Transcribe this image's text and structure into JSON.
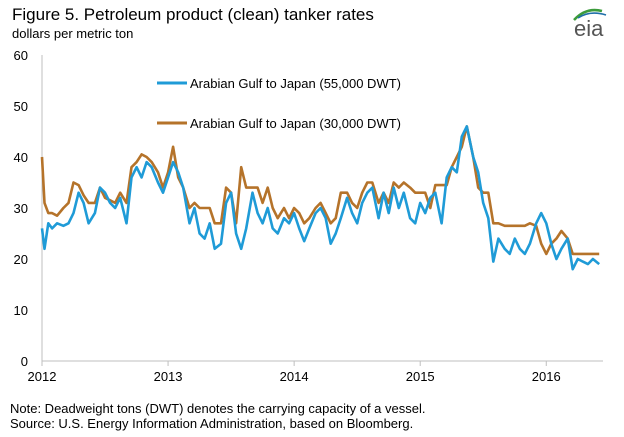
{
  "title": "Figure 5. Petroleum product (clean) tanker rates",
  "subtitle": "dollars per metric ton",
  "logo_text": "eia",
  "note": "Note: Deadweight tons (DWT) denotes the carrying capacity of a vessel.",
  "source": "Source: U.S. Energy Information Administration, based on Bloomberg.",
  "colors": {
    "blue": "#1f9bd7",
    "brown": "#b5732a",
    "axis": "#bfbfbf",
    "logo_green": "#3c9c3c",
    "logo_blue": "#1f6fa8"
  },
  "chart_data": {
    "type": "line",
    "title": "Figure 5. Petroleum product (clean) tanker rates",
    "ylabel": "dollars per metric ton",
    "ylim": [
      0,
      60
    ],
    "yticks": [
      0,
      10,
      20,
      30,
      40,
      50,
      60
    ],
    "xlim": [
      2012.0,
      2016.45
    ],
    "xticks": [
      2012,
      2013,
      2014,
      2015,
      2016
    ],
    "xtick_labels": [
      "2012",
      "2013",
      "2014",
      "2015",
      "2016"
    ],
    "grid": false,
    "legend": "inside, top-center",
    "series": [
      {
        "name": "Arabian Gulf to Japan (55,000 DWT)",
        "color": "#1f9bd7",
        "x": [
          2012.0,
          2012.02,
          2012.05,
          2012.08,
          2012.12,
          2012.17,
          2012.21,
          2012.25,
          2012.29,
          2012.33,
          2012.37,
          2012.42,
          2012.46,
          2012.5,
          2012.54,
          2012.58,
          2012.62,
          2012.67,
          2012.71,
          2012.75,
          2012.79,
          2012.83,
          2012.87,
          2012.92,
          2012.96,
          2013.0,
          2013.04,
          2013.08,
          2013.12,
          2013.17,
          2013.21,
          2013.25,
          2013.29,
          2013.33,
          2013.37,
          2013.42,
          2013.46,
          2013.5,
          2013.54,
          2013.58,
          2013.62,
          2013.67,
          2013.71,
          2013.75,
          2013.79,
          2013.83,
          2013.87,
          2013.92,
          2013.96,
          2014.0,
          2014.04,
          2014.08,
          2014.12,
          2014.17,
          2014.21,
          2014.25,
          2014.29,
          2014.33,
          2014.37,
          2014.42,
          2014.46,
          2014.5,
          2014.54,
          2014.58,
          2014.62,
          2014.67,
          2014.71,
          2014.75,
          2014.79,
          2014.83,
          2014.87,
          2014.92,
          2014.96,
          2015.0,
          2015.04,
          2015.08,
          2015.12,
          2015.17,
          2015.21,
          2015.25,
          2015.29,
          2015.33,
          2015.37,
          2015.42,
          2015.46,
          2015.5,
          2015.54,
          2015.58,
          2015.62,
          2015.67,
          2015.71,
          2015.75,
          2015.79,
          2015.83,
          2015.87,
          2015.92,
          2015.96,
          2016.0,
          2016.04,
          2016.08,
          2016.12,
          2016.17,
          2016.21,
          2016.25,
          2016.29,
          2016.33,
          2016.37,
          2016.42
        ],
        "values": [
          26,
          22,
          27,
          26,
          27,
          26.5,
          27,
          29,
          33,
          31,
          27,
          29,
          34,
          33,
          31,
          30,
          32,
          27,
          36,
          38,
          36,
          39,
          38,
          35,
          33,
          36,
          39,
          37,
          34,
          27,
          30,
          25,
          24,
          27,
          22,
          23,
          31,
          33,
          25,
          22,
          26,
          33,
          29,
          27,
          30,
          26,
          25,
          28,
          27,
          29,
          26,
          23.5,
          26,
          29,
          30,
          28,
          23,
          25,
          28,
          32,
          29,
          27,
          31,
          33,
          34,
          28,
          33,
          29,
          34,
          30,
          33,
          28,
          27,
          31,
          29,
          32,
          33,
          27,
          36,
          38,
          37,
          44,
          46,
          40,
          37,
          31,
          28,
          19.5,
          24,
          22,
          21,
          24,
          22,
          21,
          23,
          27,
          29,
          27,
          23,
          20,
          22,
          24,
          18,
          20,
          19.5,
          19,
          20,
          19
        ]
      },
      {
        "name": "Arabian Gulf to Japan (30,000 DWT)",
        "color": "#b5732a",
        "x": [
          2012.0,
          2012.02,
          2012.05,
          2012.08,
          2012.12,
          2012.17,
          2012.21,
          2012.25,
          2012.29,
          2012.33,
          2012.37,
          2012.42,
          2012.46,
          2012.5,
          2012.54,
          2012.58,
          2012.62,
          2012.67,
          2012.71,
          2012.75,
          2012.79,
          2012.83,
          2012.87,
          2012.92,
          2012.96,
          2013.0,
          2013.04,
          2013.08,
          2013.12,
          2013.17,
          2013.21,
          2013.25,
          2013.29,
          2013.33,
          2013.37,
          2013.42,
          2013.46,
          2013.5,
          2013.54,
          2013.58,
          2013.62,
          2013.67,
          2013.71,
          2013.75,
          2013.79,
          2013.83,
          2013.87,
          2013.92,
          2013.96,
          2014.0,
          2014.04,
          2014.08,
          2014.12,
          2014.17,
          2014.21,
          2014.25,
          2014.29,
          2014.33,
          2014.37,
          2014.42,
          2014.46,
          2014.5,
          2014.54,
          2014.58,
          2014.62,
          2014.67,
          2014.71,
          2014.75,
          2014.79,
          2014.83,
          2014.87,
          2014.92,
          2014.96,
          2015.0,
          2015.04,
          2015.08,
          2015.12,
          2015.17,
          2015.21,
          2015.25,
          2015.29,
          2015.33,
          2015.37,
          2015.42,
          2015.46,
          2015.5,
          2015.54,
          2015.58,
          2015.62,
          2015.67,
          2015.71,
          2015.75,
          2015.79,
          2015.83,
          2015.87,
          2015.92,
          2015.96,
          2016.0,
          2016.04,
          2016.08,
          2016.12,
          2016.17,
          2016.21,
          2016.25,
          2016.29,
          2016.33,
          2016.37,
          2016.42
        ],
        "values": [
          40,
          31,
          29,
          29,
          28.5,
          30,
          31,
          35,
          34.5,
          32.5,
          31,
          31,
          34,
          32,
          31.5,
          31,
          33,
          31,
          38,
          39,
          40.5,
          40,
          39,
          37,
          34,
          37,
          42,
          36,
          34,
          30,
          31,
          30,
          30,
          30,
          27,
          27,
          34,
          33,
          27,
          38,
          34,
          34,
          34,
          31,
          34,
          30,
          28,
          30,
          28,
          30,
          29,
          27,
          28,
          30,
          31,
          29,
          27,
          28,
          33,
          33,
          31,
          30,
          33,
          35,
          35,
          31,
          33,
          31,
          35,
          34,
          35,
          34,
          33,
          33,
          33,
          30,
          34.5,
          34.5,
          34.5,
          38,
          40,
          42,
          46,
          40,
          34,
          33,
          33,
          27,
          27,
          26.5,
          26.5,
          26.5,
          26.5,
          26.5,
          27,
          26.5,
          23,
          21,
          23,
          24,
          25.5,
          24,
          21,
          21,
          21,
          21,
          21,
          21
        ]
      }
    ]
  }
}
